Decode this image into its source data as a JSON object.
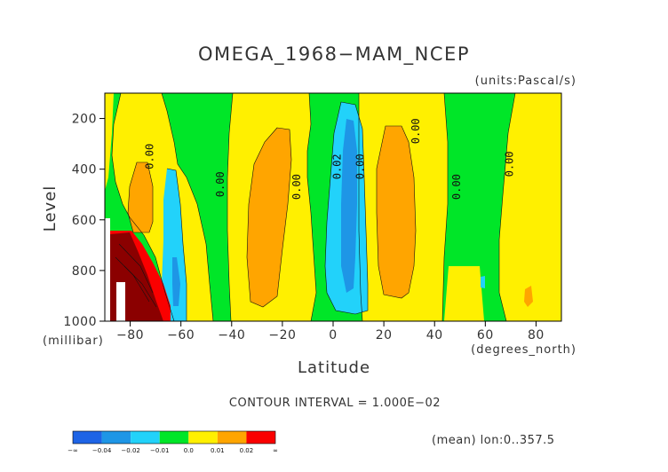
{
  "chart_data": {
    "type": "heatmap",
    "title": "OMEGA_1968−MAM_NCEP",
    "units_label": "(units:Pascal/s)",
    "xlabel": "Latitude",
    "ylabel": "Level",
    "x_unit_label": "(degrees_north)",
    "y_unit_label": "(millibar)",
    "xlim": [
      -90,
      90
    ],
    "ylim": [
      1000,
      100
    ],
    "x_ticks": [
      "−80",
      "−60",
      "−40",
      "−20",
      "0",
      "20",
      "40",
      "60",
      "80"
    ],
    "x_tick_values": [
      -80,
      -60,
      -40,
      -20,
      0,
      20,
      40,
      60,
      80
    ],
    "y_ticks": [
      "200",
      "400",
      "600",
      "800",
      "1000"
    ],
    "y_tick_values": [
      200,
      400,
      600,
      800,
      1000
    ],
    "contour_labels": [
      {
        "text": "0.00",
        "lat": -71,
        "lev": 350
      },
      {
        "text": "0.00",
        "lat": -43,
        "lev": 460
      },
      {
        "text": "0.00",
        "lat": -13,
        "lev": 470
      },
      {
        "text": "0.02",
        "lat": 3,
        "lev": 390
      },
      {
        "text": "0.00",
        "lat": 12,
        "lev": 390
      },
      {
        "text": "0.00",
        "lat": 34,
        "lev": 250
      },
      {
        "text": "0.00",
        "lat": 50,
        "lev": 470
      },
      {
        "text": "0.00",
        "lat": 71,
        "lev": 380
      }
    ],
    "contour_interval_text": "CONTOUR INTERVAL = 1.000E−02",
    "footer_text": "(mean) lon:0..357.5",
    "legend": {
      "colors": [
        "#1e64e6",
        "#1e96e6",
        "#22d2fa",
        "#00e628",
        "#fff000",
        "#ffa500",
        "#fa0000"
      ],
      "labels": [
        "−∞",
        "−0.04",
        "−0.02",
        "−0.01",
        "0.0",
        "0.01",
        "0.02",
        "∞"
      ]
    },
    "fill_colors": {
      "background": "#00e628",
      "yellow": "#fff000",
      "orange": "#ffa500",
      "cyan": "#22d2fa",
      "blue": "#1e96e6",
      "red": "#fa0000",
      "darkred": "#8b0000",
      "gap": "#ffffff"
    },
    "regions": [
      {
        "fill": "yellow",
        "lat": -90,
        "lev": 100
      },
      {
        "fill": "yellow",
        "lat": -82,
        "lev": 250
      },
      {
        "fill": "yellow",
        "lat": -40,
        "lev": 340
      },
      {
        "fill": "yellow",
        "lat": -30,
        "lev": 400
      },
      {
        "fill": "yellow",
        "lat": 30,
        "lev": 300
      },
      {
        "fill": "yellow",
        "lat": 58,
        "lev": 700
      },
      {
        "fill": "yellow",
        "lat": 72,
        "lev": 500
      },
      {
        "fill": "orange",
        "lat": -77,
        "lev": 500
      },
      {
        "fill": "orange",
        "lat": -25,
        "lev": 600
      },
      {
        "fill": "orange",
        "lat": 21,
        "lev": 500
      },
      {
        "fill": "orange",
        "lat": 76,
        "lev": 900
      },
      {
        "fill": "cyan",
        "lat": -62,
        "lev": 700
      },
      {
        "fill": "cyan",
        "lat": 2,
        "lev": 500
      },
      {
        "fill": "cyan",
        "lat": 59,
        "lev": 820
      },
      {
        "fill": "blue",
        "lat": 6,
        "lev": 500
      },
      {
        "fill": "blue",
        "lat": -62,
        "lev": 850
      },
      {
        "fill": "red",
        "lat": -79,
        "lev": 830
      },
      {
        "fill": "darkred",
        "lat": -86,
        "lev": 900
      }
    ]
  }
}
